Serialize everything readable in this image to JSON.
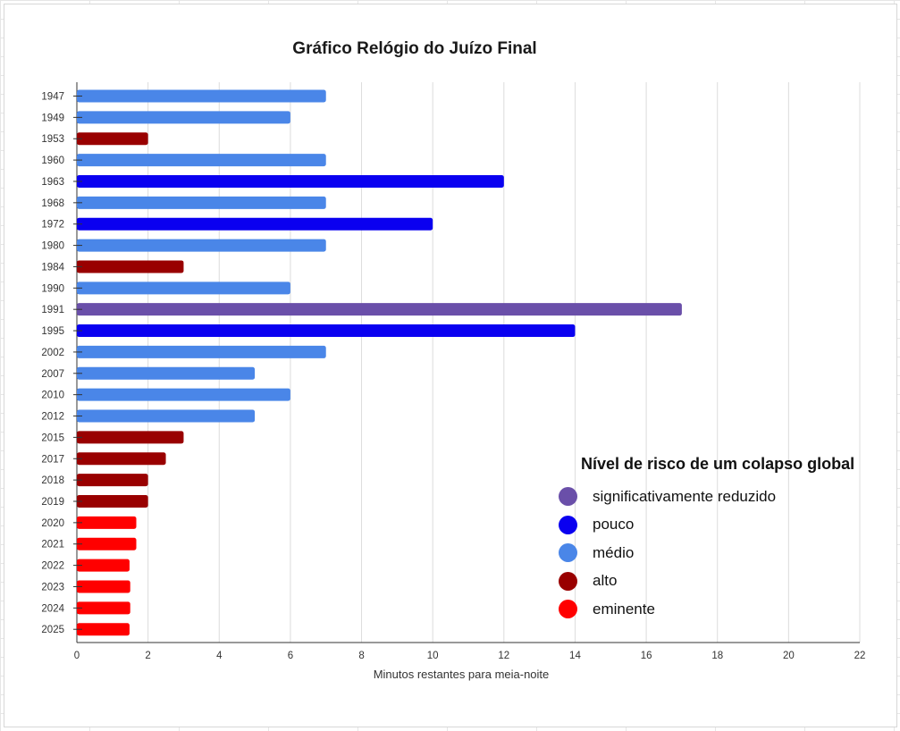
{
  "chart_data": {
    "type": "bar",
    "orientation": "horizontal",
    "title": "Gráfico Relógio do Juízo Final",
    "xlabel": "Minutos restantes para meia-noite",
    "ylabel": "",
    "xlim": [
      0,
      22
    ],
    "xticks": [
      "0",
      "2",
      "4",
      "6",
      "8",
      "10",
      "12",
      "14",
      "16",
      "18",
      "20",
      "22"
    ],
    "grid": true,
    "legend_position": "bottom-right",
    "legend_title": "Nível de risco de um colapso global",
    "categories": [
      "1947",
      "1949",
      "1953",
      "1960",
      "1963",
      "1968",
      "1972",
      "1980",
      "1984",
      "1990",
      "1991",
      "1995",
      "2002",
      "2007",
      "2010",
      "2012",
      "2015",
      "2017",
      "2018",
      "2019",
      "2020",
      "2021",
      "2022",
      "2023",
      "2024",
      "2025"
    ],
    "values": [
      7,
      6,
      2,
      7,
      12,
      7,
      10,
      7,
      3,
      6,
      17,
      14,
      7,
      5,
      6,
      5,
      3,
      2.5,
      2,
      2,
      1.67,
      1.67,
      1.48,
      1.5,
      1.5,
      1.48
    ],
    "risk_levels": [
      "médio",
      "médio",
      "alto",
      "médio",
      "pouco",
      "médio",
      "pouco",
      "médio",
      "alto",
      "médio",
      "significativamente reduzido",
      "pouco",
      "médio",
      "médio",
      "médio",
      "médio",
      "alto",
      "alto",
      "alto",
      "alto",
      "eminente",
      "eminente",
      "eminente",
      "eminente",
      "eminente",
      "eminente"
    ],
    "legend": [
      {
        "label": "significativamente reduzido",
        "color": "#6a4fa9"
      },
      {
        "label": "pouco",
        "color": "#0a00f0"
      },
      {
        "label": "médio",
        "color": "#4a86e8"
      },
      {
        "label": "alto",
        "color": "#990000"
      },
      {
        "label": "eminente",
        "color": "#ff0000"
      }
    ]
  }
}
